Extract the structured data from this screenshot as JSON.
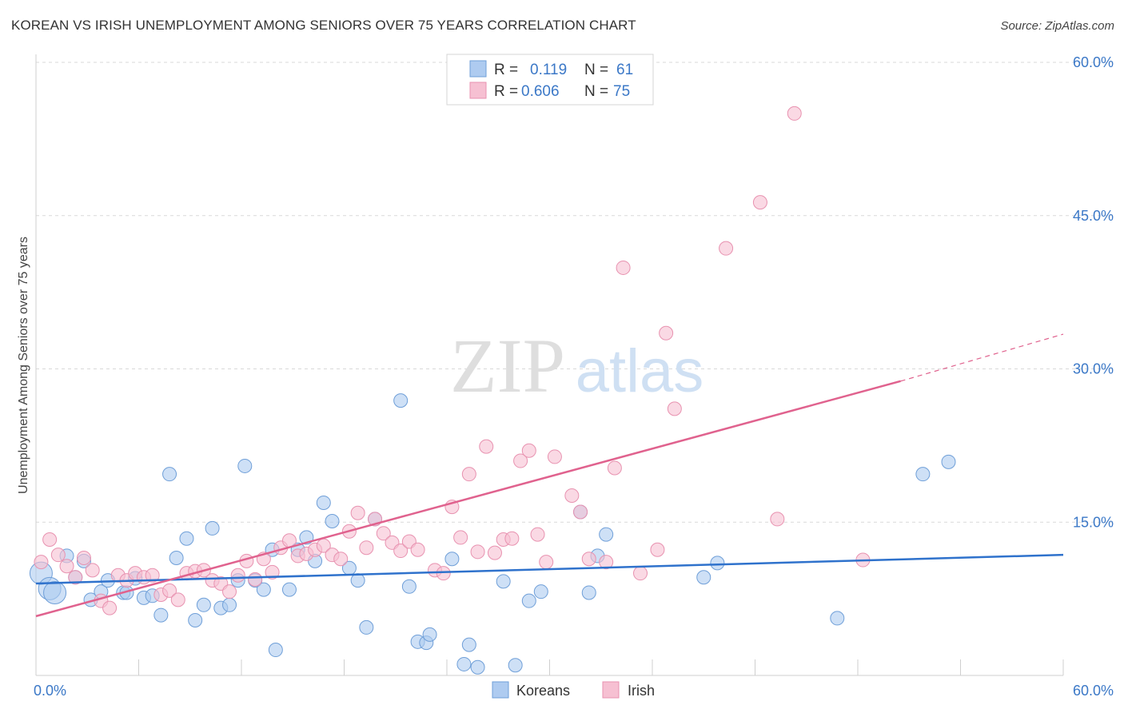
{
  "header": {
    "title": "KOREAN VS IRISH UNEMPLOYMENT AMONG SENIORS OVER 75 YEARS CORRELATION CHART",
    "source": "Source: ZipAtlas.com"
  },
  "watermark": {
    "zip": "ZIP",
    "atlas": "atlas"
  },
  "colors": {
    "korean_fill": "#aecbf0",
    "korean_stroke": "#6f9fd8",
    "korean_line": "#2f72cc",
    "irish_fill": "#f6c0d2",
    "irish_stroke": "#e892b0",
    "irish_line": "#e0628e",
    "value_text": "#3b78c7",
    "grid": "#d9d9d9"
  },
  "stats_legend": [
    {
      "r_label": "R =",
      "r_value": "0.119",
      "n_label": "N =",
      "n_value": "61"
    },
    {
      "r_label": "R =",
      "r_value": "0.606",
      "n_label": "N =",
      "n_value": "75"
    }
  ],
  "chart_data": {
    "type": "scatter",
    "title": "KOREAN VS IRISH UNEMPLOYMENT AMONG SENIORS OVER 75 YEARS CORRELATION CHART",
    "xlabel": "",
    "ylabel": "Unemployment Among Seniors over 75 years",
    "xlim": [
      0,
      60
    ],
    "ylim": [
      0,
      60
    ],
    "x_tick_labels": [
      "0.0%",
      "60.0%"
    ],
    "y_tick_labels": [
      "15.0%",
      "30.0%",
      "45.0%",
      "60.0%"
    ],
    "y_ticks": [
      15,
      30,
      45,
      60
    ],
    "grid": true,
    "legend_position": "bottom",
    "series": [
      {
        "name": "Koreans",
        "r": 0.119,
        "n": 61,
        "trend": {
          "x": [
            0,
            60
          ],
          "y": [
            9.0,
            11.8
          ]
        },
        "points": [
          [
            0.3,
            10.0
          ],
          [
            0.8,
            8.5
          ],
          [
            1.1,
            8.1
          ],
          [
            1.8,
            11.7
          ],
          [
            2.3,
            9.6
          ],
          [
            2.8,
            11.2
          ],
          [
            3.2,
            7.4
          ],
          [
            3.8,
            8.2
          ],
          [
            4.2,
            9.3
          ],
          [
            5.1,
            8.1
          ],
          [
            5.3,
            8.1
          ],
          [
            5.8,
            9.5
          ],
          [
            6.3,
            7.6
          ],
          [
            6.8,
            7.8
          ],
          [
            7.3,
            5.9
          ],
          [
            7.8,
            19.7
          ],
          [
            8.2,
            11.5
          ],
          [
            8.8,
            13.4
          ],
          [
            9.3,
            5.4
          ],
          [
            9.8,
            6.9
          ],
          [
            10.3,
            14.4
          ],
          [
            10.8,
            6.6
          ],
          [
            11.3,
            6.9
          ],
          [
            11.8,
            9.3
          ],
          [
            12.2,
            20.5
          ],
          [
            12.8,
            9.3
          ],
          [
            13.3,
            8.4
          ],
          [
            13.8,
            12.3
          ],
          [
            14.0,
            2.5
          ],
          [
            14.8,
            8.4
          ],
          [
            15.3,
            12.3
          ],
          [
            15.8,
            13.5
          ],
          [
            16.3,
            11.2
          ],
          [
            16.8,
            16.9
          ],
          [
            17.3,
            15.1
          ],
          [
            18.3,
            10.5
          ],
          [
            18.8,
            9.3
          ],
          [
            19.3,
            4.7
          ],
          [
            19.8,
            15.3
          ],
          [
            21.3,
            26.9
          ],
          [
            21.8,
            8.7
          ],
          [
            22.3,
            3.3
          ],
          [
            22.8,
            3.2
          ],
          [
            23.0,
            4.0
          ],
          [
            24.3,
            11.4
          ],
          [
            25.0,
            1.1
          ],
          [
            25.3,
            3.0
          ],
          [
            25.8,
            0.8
          ],
          [
            27.3,
            9.2
          ],
          [
            28.0,
            1.0
          ],
          [
            28.8,
            7.3
          ],
          [
            29.5,
            8.2
          ],
          [
            31.8,
            16.0
          ],
          [
            32.3,
            8.1
          ],
          [
            32.8,
            11.7
          ],
          [
            33.3,
            13.8
          ],
          [
            39.0,
            9.6
          ],
          [
            39.8,
            11.0
          ],
          [
            46.8,
            5.6
          ],
          [
            51.8,
            19.7
          ],
          [
            53.3,
            20.9
          ]
        ]
      },
      {
        "name": "Irish",
        "r": 0.606,
        "n": 75,
        "trend": {
          "x": [
            0,
            50.5
          ],
          "y": [
            5.8,
            28.8
          ]
        },
        "trend_dashed": {
          "x": [
            50.5,
            60
          ],
          "y": [
            28.8,
            33.4
          ]
        },
        "points": [
          [
            0.3,
            11.1
          ],
          [
            0.8,
            13.3
          ],
          [
            1.3,
            11.8
          ],
          [
            1.8,
            10.7
          ],
          [
            2.3,
            9.6
          ],
          [
            2.8,
            11.5
          ],
          [
            3.3,
            10.3
          ],
          [
            3.8,
            7.3
          ],
          [
            4.3,
            6.6
          ],
          [
            4.8,
            9.8
          ],
          [
            5.3,
            9.3
          ],
          [
            5.8,
            10.0
          ],
          [
            6.3,
            9.6
          ],
          [
            6.8,
            9.8
          ],
          [
            7.3,
            7.9
          ],
          [
            7.8,
            8.3
          ],
          [
            8.3,
            7.4
          ],
          [
            8.8,
            10.0
          ],
          [
            9.3,
            10.2
          ],
          [
            9.8,
            10.3
          ],
          [
            10.3,
            9.3
          ],
          [
            10.8,
            9.0
          ],
          [
            11.3,
            8.2
          ],
          [
            11.8,
            9.8
          ],
          [
            12.3,
            11.2
          ],
          [
            12.8,
            9.4
          ],
          [
            13.3,
            11.4
          ],
          [
            13.8,
            10.1
          ],
          [
            14.3,
            12.5
          ],
          [
            14.8,
            13.2
          ],
          [
            15.3,
            11.7
          ],
          [
            15.8,
            11.9
          ],
          [
            16.3,
            12.3
          ],
          [
            16.8,
            12.7
          ],
          [
            17.3,
            11.8
          ],
          [
            17.8,
            11.4
          ],
          [
            18.3,
            14.1
          ],
          [
            18.8,
            15.9
          ],
          [
            19.3,
            12.5
          ],
          [
            19.8,
            15.3
          ],
          [
            20.3,
            13.9
          ],
          [
            20.8,
            13.0
          ],
          [
            21.3,
            12.2
          ],
          [
            21.8,
            13.1
          ],
          [
            22.3,
            12.3
          ],
          [
            23.3,
            10.3
          ],
          [
            23.8,
            10.0
          ],
          [
            24.3,
            16.5
          ],
          [
            24.8,
            13.5
          ],
          [
            25.3,
            19.7
          ],
          [
            25.8,
            12.1
          ],
          [
            26.3,
            22.4
          ],
          [
            26.8,
            12.0
          ],
          [
            27.3,
            13.3
          ],
          [
            27.8,
            13.4
          ],
          [
            28.3,
            21.0
          ],
          [
            28.8,
            22.0
          ],
          [
            29.3,
            13.8
          ],
          [
            29.8,
            11.1
          ],
          [
            30.3,
            21.4
          ],
          [
            31.3,
            17.6
          ],
          [
            31.8,
            16.0
          ],
          [
            32.3,
            11.4
          ],
          [
            33.3,
            11.1
          ],
          [
            33.8,
            20.3
          ],
          [
            34.3,
            39.9
          ],
          [
            35.3,
            10.0
          ],
          [
            36.3,
            12.3
          ],
          [
            36.8,
            33.5
          ],
          [
            37.3,
            26.1
          ],
          [
            40.3,
            41.8
          ],
          [
            42.3,
            46.3
          ],
          [
            43.3,
            15.3
          ],
          [
            44.3,
            55.0
          ],
          [
            48.3,
            11.3
          ]
        ]
      }
    ]
  }
}
